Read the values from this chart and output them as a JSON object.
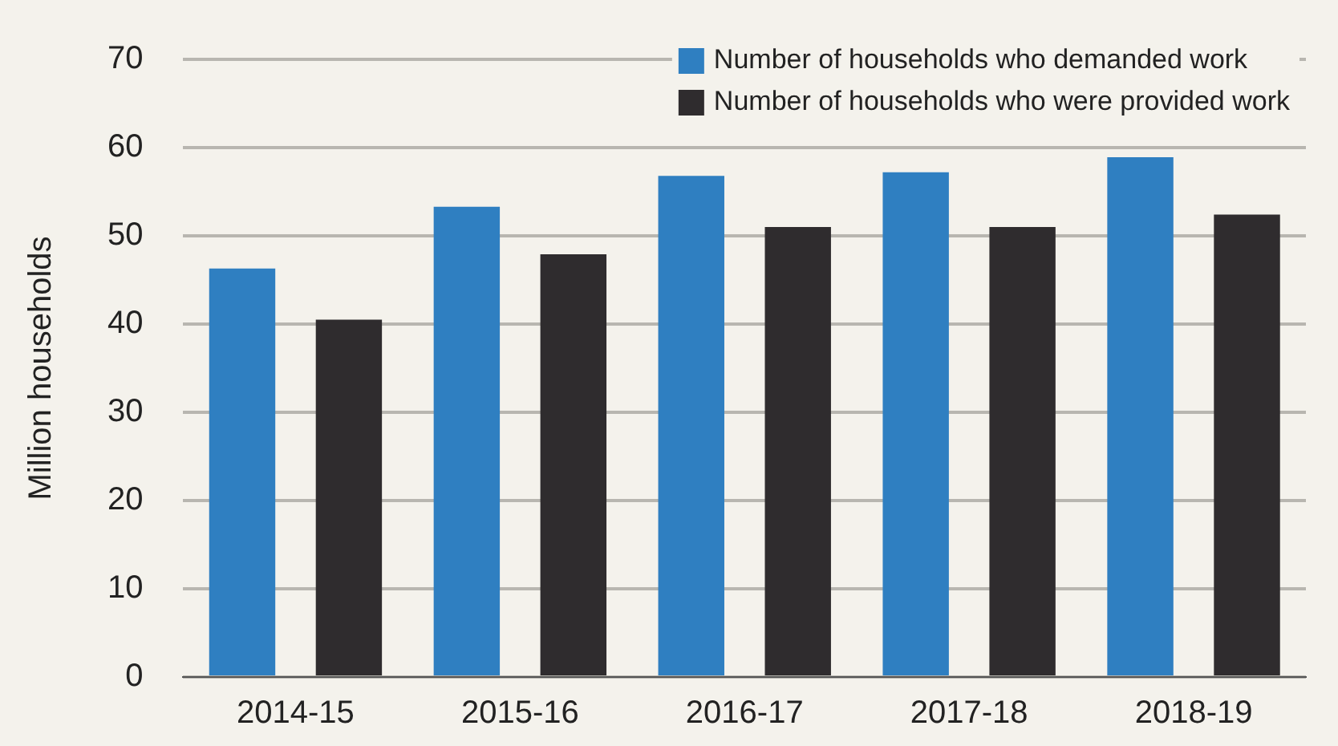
{
  "chart_data": {
    "type": "bar",
    "ylabel": "Million households",
    "categories": [
      "2014-15",
      "2015-16",
      "2016-17",
      "2017-18",
      "2018-19"
    ],
    "series": [
      {
        "name": "Number of households who demanded work",
        "color": "#2f7fc1",
        "values": [
          46.3,
          53.3,
          56.8,
          57.2,
          58.9
        ]
      },
      {
        "name": "Number of households who were provided work",
        "color": "#2f2c2e",
        "values": [
          40.5,
          47.9,
          51.0,
          51.0,
          52.4
        ]
      }
    ],
    "ylim": [
      0,
      70
    ],
    "yticks": [
      0,
      10,
      20,
      30,
      40,
      50,
      60,
      70
    ],
    "grid": "y",
    "legend": "top right"
  }
}
